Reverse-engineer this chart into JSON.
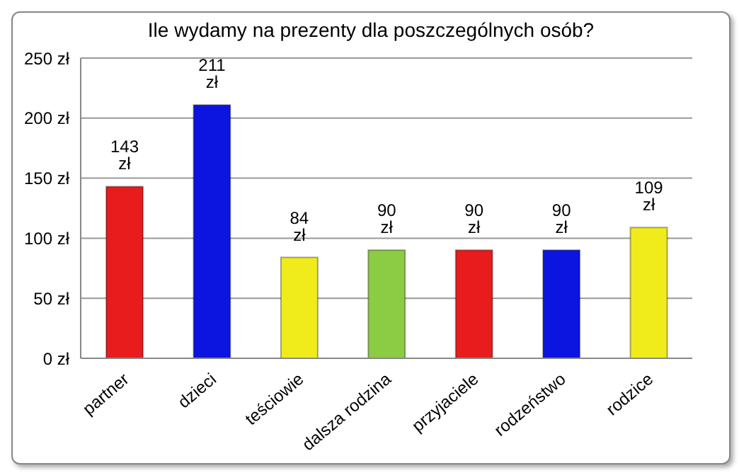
{
  "chart_data": {
    "type": "bar",
    "title": "Ile wydamy na prezenty dla poszczególnych osób?",
    "categories": [
      "partner",
      "dzieci",
      "teściowie",
      "dalsza rodzina",
      "przyjaciele",
      "rodzeństwo",
      "rodzice"
    ],
    "values": [
      143,
      211,
      84,
      90,
      90,
      90,
      109
    ],
    "colors": [
      "#e81c1c",
      "#0c14e0",
      "#f0ec1c",
      "#8ccc44",
      "#e81c1c",
      "#0c14e0",
      "#f0ec1c"
    ],
    "value_labels": [
      "143 zł",
      "211 zł",
      "84 zł",
      "90 zł",
      "90 zł",
      "90 zł",
      "109 zł"
    ],
    "ylim": [
      0,
      250
    ],
    "yticks": [
      {
        "value": 0,
        "label": "0 zł"
      },
      {
        "value": 50,
        "label": "50 zł"
      },
      {
        "value": 100,
        "label": "100 zł"
      },
      {
        "value": 150,
        "label": "150 zł"
      },
      {
        "value": 200,
        "label": "200 zł"
      },
      {
        "value": 250,
        "label": "250 zł"
      }
    ],
    "grid": "y",
    "legend": false
  }
}
